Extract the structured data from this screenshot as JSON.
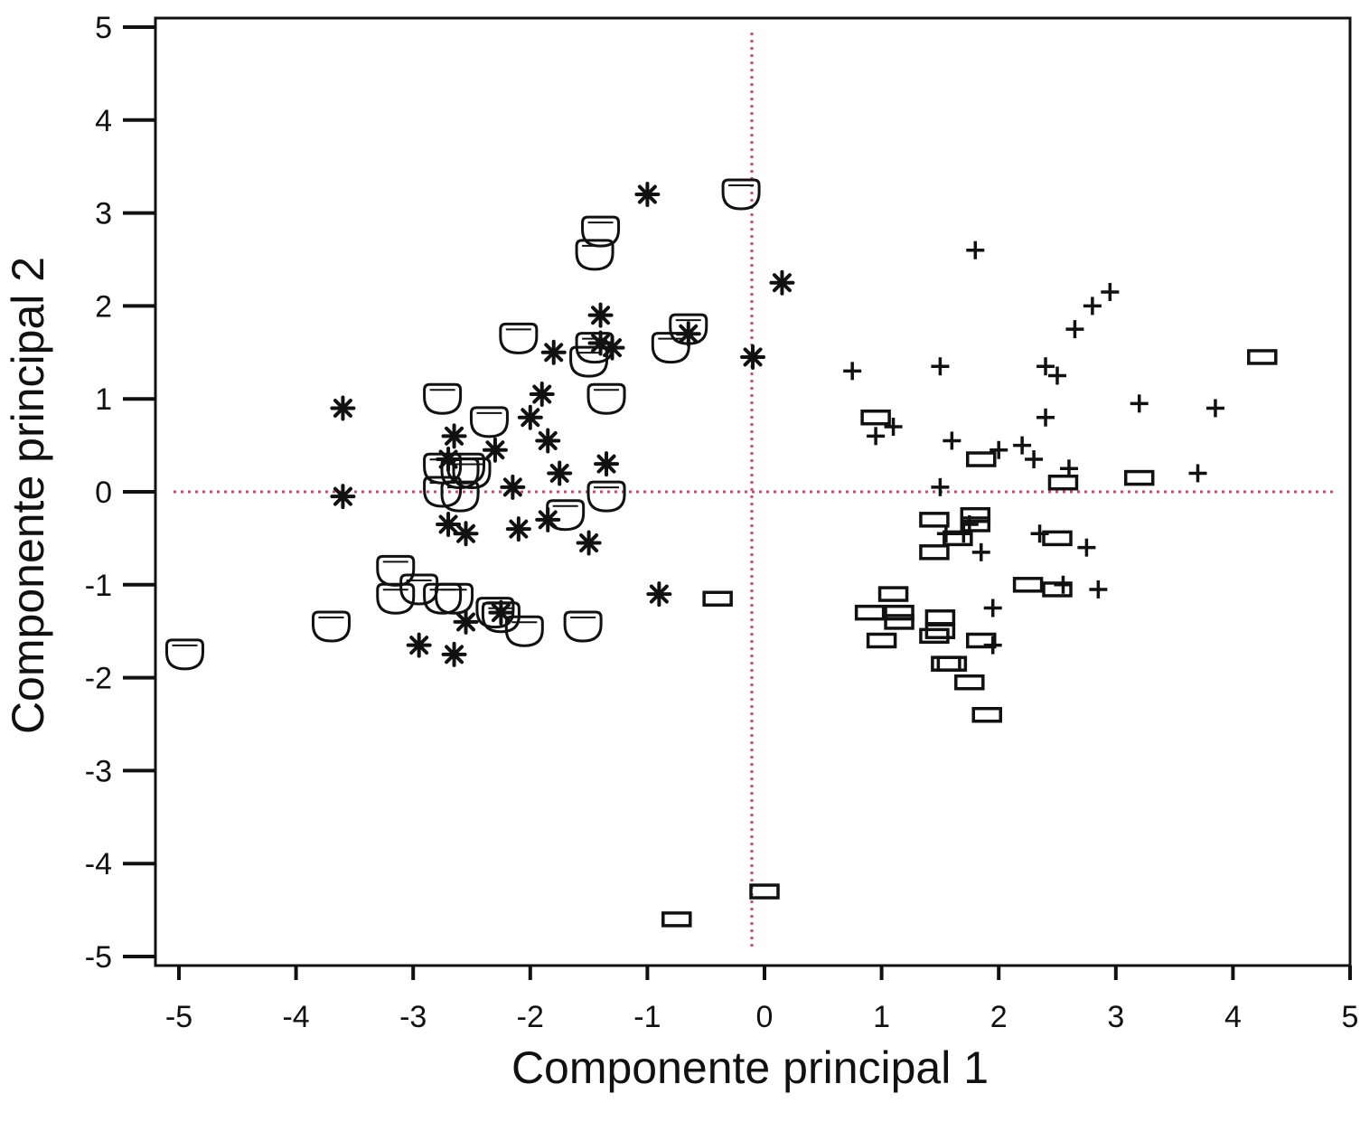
{
  "chart_data": {
    "type": "scatter",
    "title": "",
    "xlabel": "Componente principal 1",
    "ylabel": "Componente principal 2",
    "xlim": [
      -5,
      5
    ],
    "ylim": [
      -5,
      5
    ],
    "xticks": [
      "-5",
      "-4",
      "-3",
      "-2",
      "-1",
      "0",
      "1",
      "2",
      "3",
      "4",
      "5"
    ],
    "yticks": [
      "-5",
      "-4",
      "-3",
      "-2",
      "-1",
      "0",
      "1",
      "2",
      "3",
      "4",
      "5"
    ],
    "reference_lines": {
      "x": 0,
      "y": 0,
      "style": "dotted",
      "color": "#c0506a"
    },
    "grid": false,
    "legend": "none",
    "colors": {
      "marker": "#111111",
      "axes": "#111111"
    },
    "series": [
      {
        "marker": "circle",
        "points": [
          [
            -4.95,
            -1.75
          ],
          [
            -3.7,
            -1.45
          ],
          [
            -3.15,
            -0.85
          ],
          [
            -3.15,
            -1.15
          ],
          [
            -2.95,
            -1.05
          ],
          [
            -2.75,
            -1.15
          ],
          [
            -2.65,
            -1.15
          ],
          [
            -2.3,
            -1.3
          ],
          [
            -2.25,
            -1.35
          ],
          [
            -2.05,
            -1.5
          ],
          [
            -1.55,
            -1.45
          ],
          [
            -2.75,
            1.0
          ],
          [
            -2.75,
            0.25
          ],
          [
            -2.6,
            0.2
          ],
          [
            -2.55,
            0.25
          ],
          [
            -2.5,
            0.2
          ],
          [
            -2.75,
            0.0
          ],
          [
            -2.6,
            -0.05
          ],
          [
            -2.35,
            0.75
          ],
          [
            -2.1,
            1.65
          ],
          [
            -1.7,
            -0.25
          ],
          [
            -1.35,
            -0.05
          ],
          [
            -1.5,
            1.4
          ],
          [
            -1.45,
            1.55
          ],
          [
            -1.45,
            2.55
          ],
          [
            -1.4,
            2.8
          ],
          [
            -1.35,
            1.0
          ],
          [
            -0.8,
            1.55
          ],
          [
            -0.65,
            1.75
          ],
          [
            -0.2,
            3.2
          ]
        ]
      },
      {
        "marker": "asterisk",
        "points": [
          [
            -3.6,
            0.9
          ],
          [
            -3.6,
            -0.05
          ],
          [
            -2.7,
            0.35
          ],
          [
            -2.7,
            -0.35
          ],
          [
            -2.65,
            0.6
          ],
          [
            -2.55,
            -0.45
          ],
          [
            -2.55,
            -1.4
          ],
          [
            -2.65,
            -1.75
          ],
          [
            -2.95,
            -1.65
          ],
          [
            -2.3,
            0.45
          ],
          [
            -2.25,
            -1.3
          ],
          [
            -2.15,
            0.05
          ],
          [
            -2.1,
            -0.4
          ],
          [
            -2.0,
            0.8
          ],
          [
            -1.9,
            1.05
          ],
          [
            -1.85,
            0.55
          ],
          [
            -1.8,
            1.5
          ],
          [
            -1.85,
            -0.3
          ],
          [
            -1.75,
            0.2
          ],
          [
            -1.5,
            -0.55
          ],
          [
            -1.4,
            1.9
          ],
          [
            -1.4,
            1.6
          ],
          [
            -1.35,
            0.3
          ],
          [
            -1.3,
            1.55
          ],
          [
            -1.0,
            3.2
          ],
          [
            -0.9,
            -1.1
          ],
          [
            -0.65,
            1.7
          ],
          [
            -0.1,
            1.45
          ],
          [
            0.15,
            2.25
          ]
        ]
      },
      {
        "marker": "plus",
        "points": [
          [
            0.75,
            1.3
          ],
          [
            0.95,
            0.6
          ],
          [
            1.1,
            0.7
          ],
          [
            1.5,
            1.35
          ],
          [
            1.5,
            0.05
          ],
          [
            1.55,
            -0.45
          ],
          [
            1.6,
            0.55
          ],
          [
            1.7,
            -0.45
          ],
          [
            1.75,
            -0.35
          ],
          [
            1.8,
            2.6
          ],
          [
            1.85,
            -0.65
          ],
          [
            1.95,
            -1.25
          ],
          [
            1.95,
            -1.65
          ],
          [
            2.0,
            0.45
          ],
          [
            2.2,
            0.5
          ],
          [
            2.3,
            0.35
          ],
          [
            2.35,
            -0.45
          ],
          [
            2.4,
            1.35
          ],
          [
            2.4,
            0.8
          ],
          [
            2.5,
            1.25
          ],
          [
            2.55,
            -1.0
          ],
          [
            2.6,
            0.25
          ],
          [
            2.65,
            1.75
          ],
          [
            2.8,
            2.0
          ],
          [
            2.75,
            -0.6
          ],
          [
            2.85,
            -1.05
          ],
          [
            2.95,
            2.15
          ],
          [
            3.2,
            0.95
          ],
          [
            3.7,
            0.2
          ],
          [
            3.85,
            0.9
          ]
        ]
      },
      {
        "marker": "rectangle",
        "points": [
          [
            -0.75,
            -4.6
          ],
          [
            -0.4,
            -1.15
          ],
          [
            0,
            -4.3
          ],
          [
            0.9,
            -1.3
          ],
          [
            0.95,
            0.8
          ],
          [
            1.0,
            -1.6
          ],
          [
            1.1,
            -1.1
          ],
          [
            1.15,
            -1.3
          ],
          [
            1.15,
            -1.4
          ],
          [
            1.45,
            -0.3
          ],
          [
            1.45,
            -0.65
          ],
          [
            1.45,
            -1.55
          ],
          [
            1.5,
            -1.35
          ],
          [
            1.5,
            -1.5
          ],
          [
            1.55,
            -1.85
          ],
          [
            1.6,
            -1.85
          ],
          [
            1.65,
            -0.5
          ],
          [
            1.75,
            -2.05
          ],
          [
            1.8,
            -0.25
          ],
          [
            1.8,
            -0.35
          ],
          [
            1.85,
            0.35
          ],
          [
            1.85,
            -1.6
          ],
          [
            1.9,
            -2.4
          ],
          [
            2.25,
            -1.0
          ],
          [
            2.5,
            -1.05
          ],
          [
            2.5,
            -0.5
          ],
          [
            2.55,
            0.1
          ],
          [
            3.2,
            0.15
          ],
          [
            4.25,
            1.45
          ]
        ]
      }
    ]
  }
}
